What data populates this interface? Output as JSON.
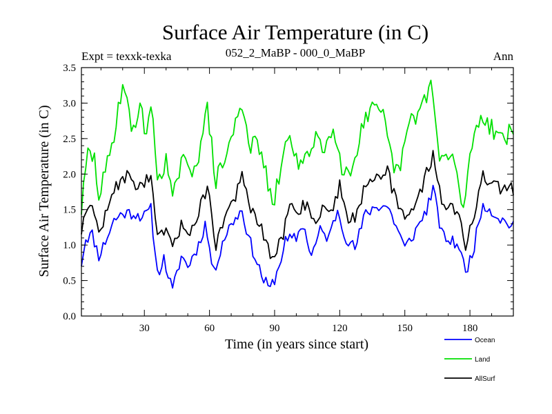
{
  "chart_data": {
    "type": "line",
    "title": "Surface Air Temperature (in C)",
    "subtitle_left": "Expt = texxk-texka",
    "subtitle_center": "052_2_MaBP - 000_0_MaBP",
    "subtitle_right": "Ann",
    "xlabel": "Time (in years since start)",
    "ylabel": "Surface Air Temperature (in C)",
    "xlim": [
      1,
      200
    ],
    "ylim": [
      0,
      3.5
    ],
    "x_ticks": [
      30,
      60,
      90,
      120,
      150,
      180
    ],
    "x_tick_labels": [
      "30",
      "60",
      "90",
      "120",
      "150",
      "180"
    ],
    "y_ticks": [
      0,
      0.5,
      1,
      1.5,
      2,
      2.5,
      3,
      3.5
    ],
    "y_tick_labels": [
      "0.0",
      "0.5",
      "1.0",
      "1.5",
      "2.0",
      "2.5",
      "3.0",
      "3.5"
    ],
    "grid": false,
    "legend_position": "bottom-right",
    "series": [
      {
        "name": "Ocean",
        "color": "#0000ff",
        "keyframes": [
          [
            1,
            0.75
          ],
          [
            3,
            1.1
          ],
          [
            6,
            1.15
          ],
          [
            9,
            0.85
          ],
          [
            12,
            1.05
          ],
          [
            16,
            1.35
          ],
          [
            20,
            1.45
          ],
          [
            25,
            1.45
          ],
          [
            30,
            1.4
          ],
          [
            33,
            1.5
          ],
          [
            36,
            0.6
          ],
          [
            39,
            0.8
          ],
          [
            43,
            0.35
          ],
          [
            47,
            0.85
          ],
          [
            50,
            0.7
          ],
          [
            55,
            1.0
          ],
          [
            58,
            1.3
          ],
          [
            62,
            0.6
          ],
          [
            66,
            1.05
          ],
          [
            70,
            1.3
          ],
          [
            75,
            1.5
          ],
          [
            78,
            1.1
          ],
          [
            82,
            0.75
          ],
          [
            85,
            0.5
          ],
          [
            88,
            0.38
          ],
          [
            91,
            0.6
          ],
          [
            95,
            1.05
          ],
          [
            100,
            1.1
          ],
          [
            103,
            1.3
          ],
          [
            107,
            0.85
          ],
          [
            111,
            1.2
          ],
          [
            115,
            1.1
          ],
          [
            119,
            1.5
          ],
          [
            123,
            1.1
          ],
          [
            127,
            0.95
          ],
          [
            132,
            1.45
          ],
          [
            137,
            1.55
          ],
          [
            142,
            1.55
          ],
          [
            147,
            1.2
          ],
          [
            150,
            0.95
          ],
          [
            155,
            1.2
          ],
          [
            160,
            1.5
          ],
          [
            163,
            1.8
          ],
          [
            167,
            1.15
          ],
          [
            171,
            1.05
          ],
          [
            175,
            1.0
          ],
          [
            178,
            0.6
          ],
          [
            182,
            1.0
          ],
          [
            186,
            1.6
          ],
          [
            189,
            1.5
          ],
          [
            193,
            1.4
          ],
          [
            197,
            1.3
          ],
          [
            200,
            1.3
          ]
        ],
        "seed": 11,
        "noise": 0.09
      },
      {
        "name": "Land",
        "color": "#00e000",
        "keyframes": [
          [
            1,
            1.5
          ],
          [
            4,
            2.3
          ],
          [
            7,
            2.2
          ],
          [
            9,
            1.7
          ],
          [
            12,
            2.0
          ],
          [
            15,
            2.4
          ],
          [
            20,
            3.3
          ],
          [
            24,
            2.65
          ],
          [
            28,
            2.9
          ],
          [
            31,
            2.6
          ],
          [
            33,
            3.0
          ],
          [
            36,
            1.95
          ],
          [
            40,
            2.2
          ],
          [
            43,
            1.6
          ],
          [
            47,
            2.2
          ],
          [
            51,
            2.0
          ],
          [
            55,
            2.3
          ],
          [
            59,
            2.9
          ],
          [
            63,
            1.9
          ],
          [
            67,
            2.2
          ],
          [
            72,
            2.7
          ],
          [
            75,
            3.0
          ],
          [
            79,
            2.4
          ],
          [
            83,
            2.4
          ],
          [
            86,
            2.0
          ],
          [
            89,
            1.5
          ],
          [
            93,
            2.1
          ],
          [
            97,
            2.6
          ],
          [
            101,
            2.1
          ],
          [
            105,
            2.2
          ],
          [
            109,
            2.6
          ],
          [
            113,
            2.3
          ],
          [
            117,
            2.75
          ],
          [
            121,
            2.1
          ],
          [
            125,
            2.0
          ],
          [
            130,
            2.65
          ],
          [
            135,
            2.9
          ],
          [
            140,
            2.8
          ],
          [
            144,
            2.2
          ],
          [
            147,
            2.0
          ],
          [
            152,
            2.7
          ],
          [
            157,
            2.9
          ],
          [
            162,
            3.3
          ],
          [
            166,
            2.2
          ],
          [
            171,
            2.25
          ],
          [
            174,
            2.0
          ],
          [
            177,
            1.5
          ],
          [
            181,
            2.45
          ],
          [
            185,
            2.85
          ],
          [
            189,
            2.7
          ],
          [
            193,
            2.55
          ],
          [
            197,
            2.55
          ],
          [
            200,
            2.6
          ]
        ],
        "seed": 29,
        "noise": 0.14
      },
      {
        "name": "AllSurf",
        "color": "#000000",
        "keyframes": [
          [
            1,
            1.2
          ],
          [
            3,
            1.55
          ],
          [
            6,
            1.5
          ],
          [
            9,
            1.2
          ],
          [
            12,
            1.4
          ],
          [
            16,
            1.75
          ],
          [
            20,
            2.0
          ],
          [
            24,
            1.9
          ],
          [
            28,
            1.85
          ],
          [
            31,
            1.9
          ],
          [
            33,
            1.95
          ],
          [
            36,
            1.05
          ],
          [
            40,
            1.25
          ],
          [
            43,
            0.9
          ],
          [
            47,
            1.3
          ],
          [
            51,
            1.2
          ],
          [
            55,
            1.45
          ],
          [
            59,
            1.85
          ],
          [
            63,
            1.0
          ],
          [
            67,
            1.4
          ],
          [
            72,
            1.7
          ],
          [
            75,
            1.95
          ],
          [
            79,
            1.5
          ],
          [
            83,
            1.3
          ],
          [
            86,
            1.0
          ],
          [
            89,
            0.8
          ],
          [
            93,
            1.05
          ],
          [
            97,
            1.55
          ],
          [
            101,
            1.5
          ],
          [
            105,
            1.6
          ],
          [
            109,
            1.3
          ],
          [
            113,
            1.55
          ],
          [
            117,
            1.5
          ],
          [
            120,
            1.85
          ],
          [
            124,
            1.4
          ],
          [
            127,
            1.35
          ],
          [
            132,
            1.9
          ],
          [
            137,
            2.0
          ],
          [
            142,
            2.05
          ],
          [
            146,
            1.6
          ],
          [
            150,
            1.35
          ],
          [
            155,
            1.6
          ],
          [
            160,
            2.0
          ],
          [
            163,
            2.3
          ],
          [
            167,
            1.6
          ],
          [
            171,
            1.55
          ],
          [
            175,
            1.4
          ],
          [
            178,
            1.0
          ],
          [
            182,
            1.45
          ],
          [
            186,
            1.95
          ],
          [
            190,
            1.85
          ],
          [
            194,
            1.8
          ],
          [
            197,
            1.75
          ],
          [
            200,
            1.8
          ]
        ],
        "seed": 47,
        "noise": 0.1
      }
    ]
  }
}
